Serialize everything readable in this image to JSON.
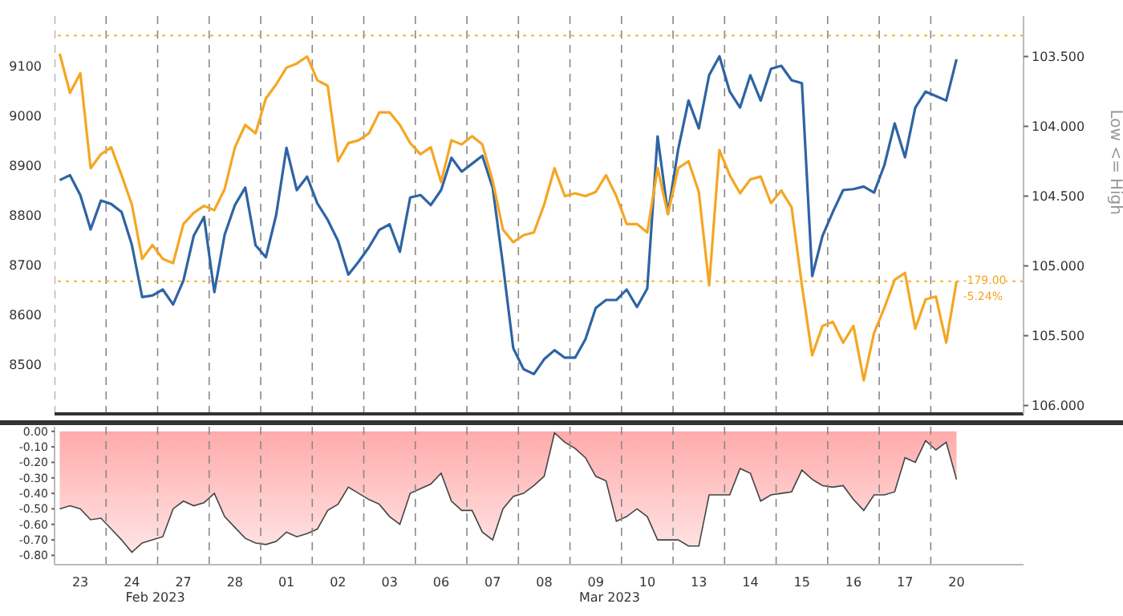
{
  "chart_data": [
    {
      "type": "line",
      "y2label": "Low <= High",
      "annotations": [
        "-179.00",
        "-5.24%"
      ],
      "categories": [
        null,
        null,
        "23",
        null,
        null,
        null,
        null,
        "24",
        null,
        null,
        null,
        null,
        "27",
        null,
        null,
        null,
        null,
        "28",
        null,
        null,
        null,
        null,
        "01",
        null,
        null,
        null,
        null,
        "02",
        null,
        null,
        null,
        null,
        "03",
        null,
        null,
        null,
        null,
        "06",
        null,
        null,
        null,
        null,
        "07",
        null,
        null,
        null,
        null,
        "08",
        null,
        null,
        null,
        null,
        "09",
        null,
        null,
        null,
        null,
        "10",
        null,
        null,
        null,
        null,
        "13",
        null,
        null,
        null,
        null,
        "14",
        null,
        null,
        null,
        null,
        "15",
        null,
        null,
        null,
        null,
        "16",
        null,
        null,
        null,
        null,
        "17",
        null,
        null,
        null,
        null,
        "20",
        null,
        null,
        null,
        null,
        null,
        null
      ],
      "ylim": [
        8400,
        9200
      ],
      "yticks": [
        8500,
        8600,
        8700,
        8800,
        8900,
        9000,
        9100
      ],
      "y2lim": [
        106.06,
        103.21
      ],
      "y2ticks": [
        {
          "value": 103.5,
          "label": "103.500"
        },
        {
          "value": 104,
          "label": "104.000"
        },
        {
          "value": 104.5,
          "label": "104.500"
        },
        {
          "value": 105,
          "label": "105.000"
        },
        {
          "value": 105.5,
          "label": "105.500"
        },
        {
          "value": 106,
          "label": "106.000"
        }
      ],
      "grid": "x",
      "tick_labels": "y",
      "legend": false,
      "ref_lines": [
        {
          "axis": "y2",
          "value": 103.35,
          "color": "#f5a623",
          "line_style": "dotted"
        },
        {
          "axis": "y2",
          "value": 105.11,
          "color": "#f5a623",
          "line_style": "dotted"
        }
      ],
      "series": [
        {
          "color": "#2e64a3",
          "values": [
            8870,
            8880,
            8840,
            8771,
            8829,
            8822,
            8806,
            8740,
            8635,
            8638,
            8650,
            8620,
            8668,
            8758,
            8796,
            8645,
            8760,
            8820,
            8855,
            8739,
            8715,
            8800,
            8935,
            8850,
            8877,
            8823,
            8790,
            8748,
            8680,
            8706,
            8735,
            8770,
            8781,
            8726,
            8835,
            8840,
            8820,
            8850,
            8915,
            8887,
            8903,
            8919,
            8855,
            8700,
            8532,
            8490,
            8480,
            8510,
            8528,
            8513,
            8513,
            8550,
            8613,
            8629,
            8629,
            8650,
            8615,
            8652,
            8958,
            8803,
            8932,
            9030,
            8974,
            9081,
            9119,
            9048,
            9016,
            9081,
            9030,
            9094,
            9100,
            9071,
            9065,
            8677,
            8758,
            8806,
            8850,
            8852,
            8857,
            8845,
            8900,
            8984,
            8916,
            9016,
            9048,
            9039,
            9030,
            9113,
            null,
            null,
            null,
            null,
            null,
            null
          ]
        },
        {
          "color": "#f5a623",
          "axis": "y2",
          "values": [
            103.48,
            103.76,
            103.62,
            104.3,
            104.2,
            104.15,
            104.35,
            104.56,
            104.95,
            104.85,
            104.95,
            104.98,
            104.7,
            104.62,
            104.57,
            104.6,
            104.45,
            104.15,
            103.99,
            104.05,
            103.8,
            103.7,
            103.58,
            103.55,
            103.5,
            103.67,
            103.71,
            104.25,
            104.12,
            104.1,
            104.05,
            103.9,
            103.9,
            103.99,
            104.12,
            104.2,
            104.15,
            104.4,
            104.1,
            104.13,
            104.07,
            104.13,
            104.39,
            104.74,
            104.83,
            104.78,
            104.76,
            104.56,
            104.3,
            104.5,
            104.48,
            104.5,
            104.47,
            104.35,
            104.5,
            104.7,
            104.7,
            104.76,
            104.3,
            104.63,
            104.3,
            104.25,
            104.47,
            105.14,
            104.17,
            104.35,
            104.48,
            104.38,
            104.36,
            104.55,
            104.46,
            104.58,
            105.14,
            105.64,
            105.43,
            105.4,
            105.55,
            105.43,
            105.82,
            105.48,
            105.3,
            105.1,
            105.05,
            105.45,
            105.24,
            105.22,
            105.55,
            105.11,
            null,
            null,
            null,
            null,
            null,
            null
          ]
        }
      ]
    },
    {
      "type": "area",
      "color": "#ff6b6b",
      "annotations": [
        "Feb 2023",
        "Mar 2023"
      ],
      "categories": [
        null,
        null,
        "23",
        null,
        null,
        null,
        null,
        "24",
        null,
        null,
        null,
        null,
        "27",
        null,
        null,
        null,
        null,
        "28",
        null,
        null,
        null,
        null,
        "01",
        null,
        null,
        null,
        null,
        "02",
        null,
        null,
        null,
        null,
        "03",
        null,
        null,
        null,
        null,
        "06",
        null,
        null,
        null,
        null,
        "07",
        null,
        null,
        null,
        null,
        "08",
        null,
        null,
        null,
        null,
        "09",
        null,
        null,
        null,
        null,
        "10",
        null,
        null,
        null,
        null,
        "13",
        null,
        null,
        null,
        null,
        "14",
        null,
        null,
        null,
        null,
        "15",
        null,
        null,
        null,
        null,
        "16",
        null,
        null,
        null,
        null,
        "17",
        null,
        null,
        null,
        null,
        "20",
        null,
        null,
        null,
        null,
        null,
        null
      ],
      "ylim": [
        -0.86,
        0.03
      ],
      "yticks": [
        {
          "value": 0,
          "label": "0.00"
        },
        {
          "value": -0.1,
          "label": "-0.10"
        },
        {
          "value": -0.2,
          "label": "-0.20"
        },
        {
          "value": -0.3,
          "label": "-0.30"
        },
        {
          "value": -0.4,
          "label": "-0.40"
        },
        {
          "value": -0.5,
          "label": "-0.50"
        },
        {
          "value": -0.6,
          "label": "-0.60"
        },
        {
          "value": -0.7,
          "label": "-0.70"
        },
        {
          "value": -0.8,
          "label": "-0.80"
        }
      ],
      "grid": "x",
      "legend": false,
      "values": [
        -0.5,
        -0.48,
        -0.5,
        -0.57,
        -0.56,
        -0.63,
        -0.7,
        -0.78,
        -0.72,
        -0.7,
        -0.68,
        -0.5,
        -0.45,
        -0.48,
        -0.46,
        -0.4,
        -0.55,
        -0.62,
        -0.69,
        -0.72,
        -0.73,
        -0.71,
        -0.65,
        -0.68,
        -0.66,
        -0.63,
        -0.51,
        -0.47,
        -0.36,
        -0.4,
        -0.44,
        -0.47,
        -0.55,
        -0.6,
        -0.4,
        -0.37,
        -0.34,
        -0.27,
        -0.45,
        -0.51,
        -0.51,
        -0.65,
        -0.7,
        -0.5,
        -0.42,
        -0.4,
        -0.35,
        -0.29,
        -0.01,
        -0.07,
        -0.11,
        -0.17,
        -0.29,
        -0.32,
        -0.58,
        -0.55,
        -0.5,
        -0.55,
        -0.7,
        -0.7,
        -0.7,
        -0.74,
        -0.74,
        -0.41,
        -0.41,
        -0.41,
        -0.24,
        -0.27,
        -0.45,
        -0.41,
        -0.4,
        -0.39,
        -0.25,
        -0.31,
        -0.35,
        -0.36,
        -0.35,
        -0.44,
        -0.51,
        -0.41,
        -0.41,
        -0.39,
        -0.17,
        -0.2,
        -0.06,
        -0.12,
        -0.07,
        -0.31,
        null,
        null,
        null,
        null,
        null,
        null
      ]
    }
  ]
}
